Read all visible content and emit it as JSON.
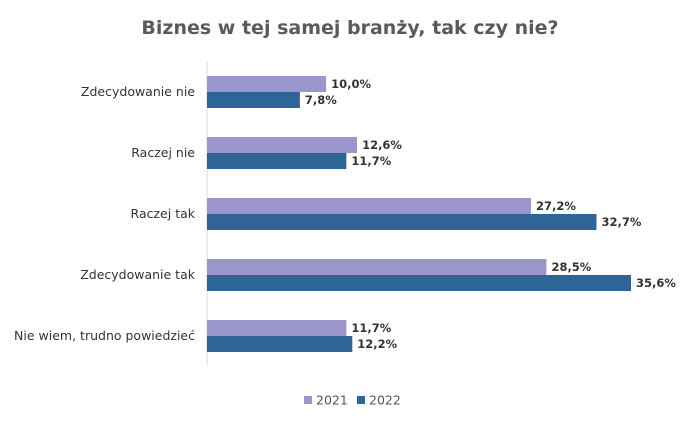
{
  "chart_data": {
    "type": "bar",
    "orientation": "horizontal",
    "title": "Biznes w tej samej branży, tak czy nie?",
    "categories": [
      "Zdecydowanie nie",
      "Raczej nie",
      "Raczej tak",
      "Zdecydowanie tak",
      "Nie wiem, trudno powiedzieć"
    ],
    "series": [
      {
        "name": "2021",
        "values": [
          10.0,
          12.6,
          27.2,
          28.5,
          11.7
        ],
        "labels": [
          "10,0%",
          "12,6%",
          "27,2%",
          "28,5%",
          "11,7%"
        ],
        "color": "#9b97cc"
      },
      {
        "name": "2022",
        "values": [
          7.8,
          11.7,
          32.7,
          35.6,
          12.2
        ],
        "labels": [
          "7,8%",
          "11,7%",
          "32,7%",
          "35,6%",
          "12,2%"
        ],
        "color": "#2f6497"
      }
    ],
    "xlim": [
      0,
      40
    ],
    "legend": "bottom",
    "grid": false
  }
}
